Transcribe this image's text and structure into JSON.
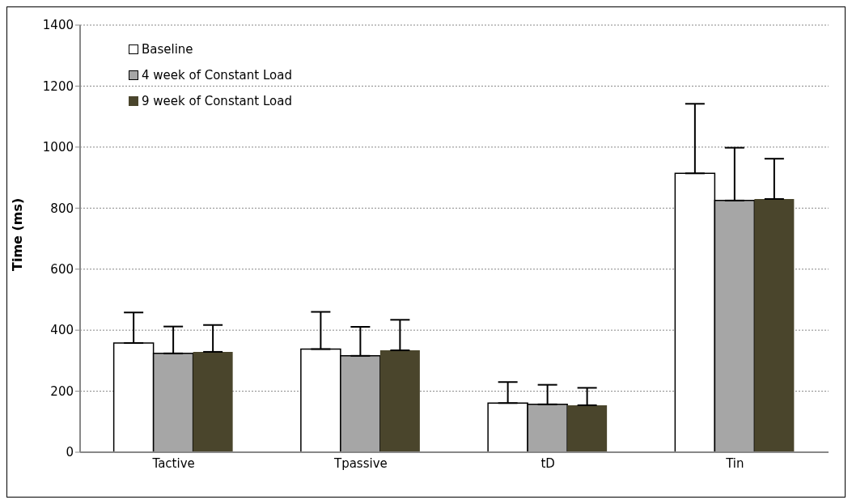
{
  "chart_data": {
    "type": "bar",
    "ylabel": "Time (ms)",
    "categories": [
      "Tactive",
      "Tpassive",
      "tD",
      "Tin"
    ],
    "series": [
      {
        "name": "Baseline",
        "color": "#ffffff",
        "values": [
          358,
          338,
          161,
          914
        ],
        "errors": [
          [
            358,
            458
          ],
          [
            338,
            460
          ],
          [
            161,
            230
          ],
          [
            914,
            1142
          ]
        ]
      },
      {
        "name": "4 week of Constant Load",
        "color": "#a6a6a6",
        "values": [
          324,
          316,
          157,
          825
        ],
        "errors": [
          [
            324,
            412
          ],
          [
            316,
            411
          ],
          [
            157,
            221
          ],
          [
            825,
            998
          ]
        ]
      },
      {
        "name": "9 week of Constant Load",
        "color": "#4a452c",
        "values": [
          329,
          334,
          154,
          830
        ],
        "errors": [
          [
            329,
            417
          ],
          [
            334,
            434
          ],
          [
            154,
            211
          ],
          [
            830,
            962
          ]
        ]
      }
    ],
    "ylim": [
      0,
      1400
    ],
    "yticks": [
      0,
      200,
      400,
      600,
      800,
      1000,
      1200,
      1400
    ],
    "grid": "y",
    "legend": "top left"
  }
}
